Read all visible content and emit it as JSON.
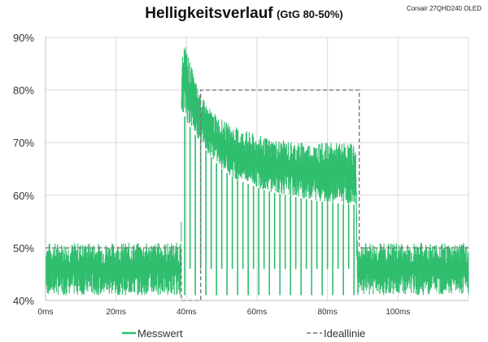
{
  "chart_data": {
    "type": "line",
    "title": "Helligkeitsverlauf",
    "subtitle": "(GtG 80-50%)",
    "corner_label": "Corsair 27QHD240  OLED",
    "xlabel": "",
    "ylabel": "",
    "xlim": [
      0,
      120
    ],
    "ylim": [
      40,
      90
    ],
    "x_ticks": [
      0,
      20,
      40,
      60,
      80,
      100
    ],
    "x_tick_labels": [
      "0ms",
      "20ms",
      "40ms",
      "60ms",
      "80ms",
      "100ms"
    ],
    "y_ticks": [
      40,
      50,
      60,
      70,
      80,
      90
    ],
    "y_tick_labels": [
      "40%",
      "50%",
      "60%",
      "70%",
      "80%",
      "90%"
    ],
    "grid": true,
    "legend_position": "bottom",
    "series": [
      {
        "name": "Messwert",
        "color": "#2fbd6e",
        "style": "solid",
        "x": [
          0,
          38.5,
          38.6,
          39,
          40,
          42,
          44,
          46,
          48,
          50,
          52,
          54,
          56,
          58,
          60,
          62,
          64,
          66,
          68,
          70,
          72,
          74,
          76,
          78,
          80,
          82,
          84,
          86,
          88,
          88.5,
          89,
          120
        ],
        "upper": [
          51,
          51,
          80,
          90,
          88,
          83,
          79,
          77,
          75.5,
          74.5,
          73.5,
          73,
          72.5,
          72,
          71.5,
          71,
          70.8,
          70.6,
          70.4,
          70.3,
          70.2,
          70.1,
          70,
          70,
          70,
          70,
          70,
          70,
          70,
          50,
          51,
          51
        ],
        "lower": [
          41,
          41,
          75,
          76,
          74,
          72,
          70,
          68,
          66.5,
          65,
          64,
          63,
          62.5,
          62,
          61.5,
          61,
          60.6,
          60.3,
          60,
          59.8,
          59.5,
          59.3,
          59,
          58.8,
          58.6,
          58.5,
          58.4,
          58.3,
          58.2,
          41,
          41,
          41
        ],
        "dips_x": [
          39.5,
          41,
          42.5,
          44,
          45.5,
          47,
          48.5,
          50,
          51.5,
          53,
          54.5,
          56,
          57.5,
          59,
          60.5,
          62,
          63.5,
          65,
          66.5,
          68,
          69.5,
          71,
          72.5,
          74,
          75.5,
          77,
          78.5,
          80,
          81.5,
          83,
          84.5,
          86,
          87.5
        ],
        "dips_to": [
          41,
          46,
          41,
          46,
          41,
          46,
          41,
          46,
          41,
          46,
          41,
          46,
          41,
          46,
          41,
          46,
          41,
          46,
          41,
          46,
          41,
          46,
          41,
          46,
          41,
          46,
          41,
          46,
          41,
          46,
          41,
          46,
          41
        ]
      },
      {
        "name": "Ideallinie",
        "color": "#777777",
        "style": "dashed",
        "x": [
          0,
          38.5,
          38.5,
          44,
          44,
          89,
          89,
          120
        ],
        "y": [
          50,
          50,
          40,
          40,
          80,
          80,
          50,
          50
        ]
      }
    ]
  }
}
